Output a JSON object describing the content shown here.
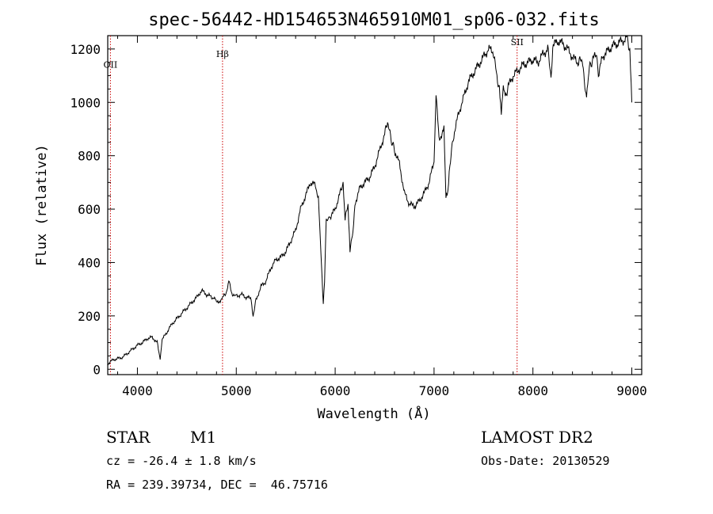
{
  "title": "spec-56442-HD154653N465910M01_sp06-032.fits",
  "info": {
    "class": "STAR",
    "subclass": "M1",
    "survey": "LAMOST DR2",
    "cz": "cz = -26.4 ± 1.8 km/s",
    "obs_date": "Obs-Date: 20130529",
    "radec": "RA = 239.39734, DEC =  46.75716"
  },
  "chart_data": {
    "type": "line",
    "title": "spec-56442-HD154653N465910M01_sp06-032.fits",
    "xlabel": "Wavelength (Å)",
    "ylabel": "Flux (relative)",
    "xlim": [
      3700,
      9100
    ],
    "ylim": [
      -20,
      1250
    ],
    "xticks": [
      4000,
      5000,
      6000,
      7000,
      8000,
      9000
    ],
    "yticks": [
      0,
      200,
      400,
      600,
      800,
      1000,
      1200
    ],
    "grid": false,
    "line_markers": [
      {
        "label": "OII",
        "x": 3727,
        "label_y": 1130
      },
      {
        "label": "Hβ",
        "x": 4861,
        "label_y": 1170
      },
      {
        "label": "SII",
        "x": 7840,
        "label_y": 1215
      }
    ],
    "series": [
      {
        "x": [
          3700,
          3750,
          3800,
          3850,
          3900,
          3950,
          4000,
          4050,
          4100,
          4150,
          4200,
          4230,
          4250,
          4300,
          4350,
          4400,
          4450,
          4500,
          4550,
          4600,
          4650,
          4700,
          4750,
          4780,
          4800,
          4850,
          4870,
          4900,
          4930,
          4950,
          4980,
          5000,
          5050,
          5100,
          5150,
          5170,
          5200,
          5250,
          5300,
          5350,
          5400,
          5450,
          5500,
          5550,
          5600,
          5650,
          5700,
          5750,
          5800,
          5830,
          5850,
          5880,
          5893,
          5910,
          5950,
          6000,
          6050,
          6080,
          6100,
          6130,
          6150,
          6180,
          6200,
          6250,
          6300,
          6350,
          6400,
          6450,
          6500,
          6530,
          6560,
          6600,
          6650,
          6700,
          6750,
          6800,
          6850,
          6900,
          6950,
          7000,
          7020,
          7050,
          7100,
          7120,
          7140,
          7160,
          7200,
          7250,
          7300,
          7350,
          7400,
          7450,
          7500,
          7550,
          7600,
          7630,
          7660,
          7680,
          7700,
          7720,
          7750,
          7800,
          7850,
          7900,
          7950,
          8000,
          8050,
          8100,
          8150,
          8183,
          8200,
          8250,
          8300,
          8350,
          8400,
          8450,
          8498,
          8520,
          8542,
          8560,
          8600,
          8650,
          8662,
          8700,
          8750,
          8800,
          8850,
          8900,
          8950,
          8980,
          9000
        ],
        "values": [
          20,
          35,
          40,
          45,
          60,
          75,
          90,
          100,
          115,
          120,
          100,
          40,
          110,
          140,
          170,
          190,
          210,
          230,
          250,
          270,
          295,
          280,
          270,
          265,
          250,
          260,
          270,
          290,
          330,
          290,
          270,
          275,
          280,
          270,
          265,
          200,
          260,
          310,
          330,
          380,
          410,
          420,
          440,
          480,
          520,
          600,
          650,
          700,
          690,
          640,
          480,
          250,
          330,
          560,
          570,
          600,
          660,
          700,
          560,
          620,
          450,
          510,
          620,
          680,
          700,
          720,
          760,
          820,
          880,
          930,
          870,
          820,
          770,
          660,
          620,
          610,
          630,
          660,
          700,
          780,
          1040,
          860,
          900,
          640,
          660,
          770,
          880,
          960,
          1020,
          1080,
          1110,
          1140,
          1170,
          1200,
          1190,
          1110,
          1050,
          950,
          1050,
          1020,
          1060,
          1100,
          1120,
          1140,
          1150,
          1160,
          1150,
          1180,
          1200,
          1090,
          1210,
          1230,
          1220,
          1200,
          1170,
          1150,
          1160,
          1090,
          1010,
          1110,
          1160,
          1180,
          1090,
          1170,
          1190,
          1210,
          1220,
          1230,
          1240,
          1200,
          1000
        ]
      }
    ]
  }
}
